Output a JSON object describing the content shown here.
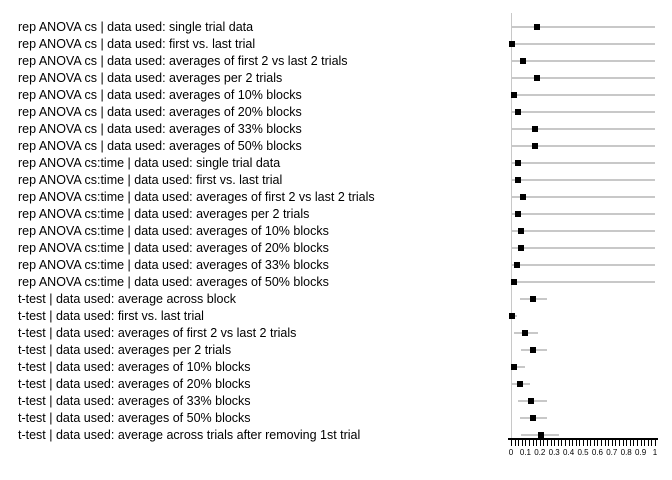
{
  "chart_data": {
    "type": "scatter",
    "subtype": "forest-dot-plot",
    "title": "",
    "xlabel": "",
    "ylabel": "",
    "xlim": [
      0,
      1
    ],
    "x_tick_labels": [
      "0",
      "0.1",
      "0.2",
      "0.3",
      "0.4",
      "0.5",
      "0.6",
      "0.7",
      "0.8",
      "0.9",
      "1"
    ],
    "x_minor_tick_step": 0.025,
    "grid": false,
    "legend_position": "none",
    "marker_shape": "filled-square",
    "rows": [
      {
        "label": "rep ANOVA cs | data used: single trial data",
        "estimate": 0.18,
        "bar_lo": 0.0,
        "bar_hi": 1.0
      },
      {
        "label": "rep ANOVA cs | data used: first vs. last trial",
        "estimate": 0.01,
        "bar_lo": 0.0,
        "bar_hi": 1.0
      },
      {
        "label": "rep ANOVA cs | data used: averages of first 2 vs last 2 trials",
        "estimate": 0.08,
        "bar_lo": 0.0,
        "bar_hi": 1.0
      },
      {
        "label": "rep ANOVA cs | data used: averages per 2 trials",
        "estimate": 0.18,
        "bar_lo": 0.0,
        "bar_hi": 1.0
      },
      {
        "label": "rep ANOVA cs | data used: averages of 10% blocks",
        "estimate": 0.02,
        "bar_lo": 0.0,
        "bar_hi": 1.0
      },
      {
        "label": "rep ANOVA cs | data used: averages of 20% blocks",
        "estimate": 0.05,
        "bar_lo": 0.0,
        "bar_hi": 1.0
      },
      {
        "label": "rep ANOVA cs | data used: averages of 33% blocks",
        "estimate": 0.17,
        "bar_lo": 0.0,
        "bar_hi": 1.0
      },
      {
        "label": "rep ANOVA cs | data used: averages of 50% blocks",
        "estimate": 0.17,
        "bar_lo": 0.0,
        "bar_hi": 1.0
      },
      {
        "label": "rep ANOVA cs:time | data used: single trial data",
        "estimate": 0.05,
        "bar_lo": 0.0,
        "bar_hi": 1.0
      },
      {
        "label": "rep ANOVA cs:time | data used: first vs. last trial",
        "estimate": 0.05,
        "bar_lo": 0.0,
        "bar_hi": 1.0
      },
      {
        "label": "rep ANOVA cs:time | data used: averages of first 2 vs last 2 trials",
        "estimate": 0.08,
        "bar_lo": 0.0,
        "bar_hi": 1.0
      },
      {
        "label": "rep ANOVA cs:time | data used: averages per 2 trials",
        "estimate": 0.05,
        "bar_lo": 0.0,
        "bar_hi": 1.0
      },
      {
        "label": "rep ANOVA cs:time | data used: averages of 10% blocks",
        "estimate": 0.07,
        "bar_lo": 0.0,
        "bar_hi": 1.0
      },
      {
        "label": "rep ANOVA cs:time | data used: averages of 20% blocks",
        "estimate": 0.07,
        "bar_lo": 0.0,
        "bar_hi": 1.0
      },
      {
        "label": "rep ANOVA cs:time | data used: averages of 33% blocks",
        "estimate": 0.04,
        "bar_lo": 0.0,
        "bar_hi": 1.0
      },
      {
        "label": "rep ANOVA cs:time | data used: averages of 50% blocks",
        "estimate": 0.02,
        "bar_lo": 0.0,
        "bar_hi": 1.0
      },
      {
        "label": "t-test | data used: average across block",
        "estimate": 0.15,
        "bar_lo": 0.06,
        "bar_hi": 0.25
      },
      {
        "label": "t-test | data used: first vs. last trial",
        "estimate": 0.01,
        "bar_lo": 0.0,
        "bar_hi": 0.04
      },
      {
        "label": "t-test | data used: averages of first 2 vs last 2 trials",
        "estimate": 0.1,
        "bar_lo": 0.02,
        "bar_hi": 0.19
      },
      {
        "label": "t-test | data used: averages per 2 trials",
        "estimate": 0.15,
        "bar_lo": 0.07,
        "bar_hi": 0.25
      },
      {
        "label": "t-test | data used: averages of 10% blocks",
        "estimate": 0.02,
        "bar_lo": 0.0,
        "bar_hi": 0.1
      },
      {
        "label": "t-test | data used: averages of 20% blocks",
        "estimate": 0.06,
        "bar_lo": 0.01,
        "bar_hi": 0.13
      },
      {
        "label": "t-test | data used: averages of 33% blocks",
        "estimate": 0.14,
        "bar_lo": 0.05,
        "bar_hi": 0.25
      },
      {
        "label": "t-test | data used: averages of 50% blocks",
        "estimate": 0.15,
        "bar_lo": 0.06,
        "bar_hi": 0.25
      },
      {
        "label": "t-test | data used: average across trials after removing 1st trial",
        "estimate": 0.21,
        "bar_lo": 0.07,
        "bar_hi": 0.33
      }
    ]
  },
  "colors": {
    "background": "#ffffff",
    "text": "#000000",
    "marker": "#000000",
    "error_bar": "#c8c8c8",
    "y_axis": "#c8c8c8",
    "x_axis": "#000000"
  }
}
